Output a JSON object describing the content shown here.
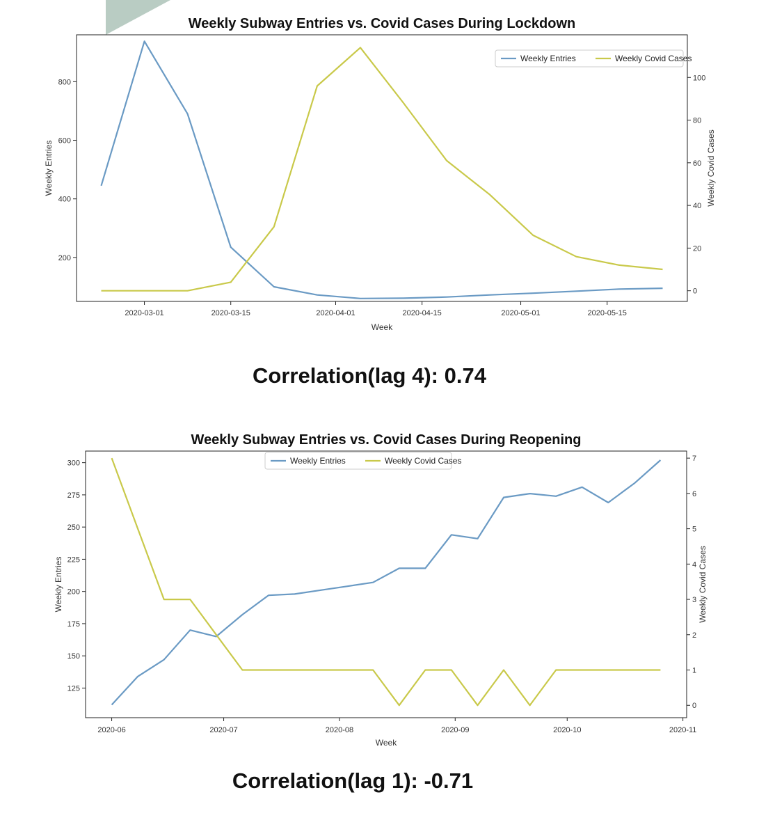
{
  "colors": {
    "entries": "#6a9ac4",
    "covid": "#c9c94a",
    "corner_decor": "#b9ccc3"
  },
  "correlations": {
    "lockdown": "Correlation(lag 4): 0.74",
    "reopening": "Correlation(lag 1): -0.71"
  },
  "chart_data": [
    {
      "type": "line",
      "title": "Weekly Subway Entries vs. Covid Cases During Lockdown",
      "xlabel": "Week",
      "ylabel": "Weekly Entries",
      "y2label": "Weekly Covid Cases",
      "x": [
        "2020-02-23",
        "2020-03-01",
        "2020-03-08",
        "2020-03-15",
        "2020-03-22",
        "2020-03-29",
        "2020-04-05",
        "2020-04-12",
        "2020-04-19",
        "2020-04-26",
        "2020-05-03",
        "2020-05-10",
        "2020-05-17",
        "2020-05-24"
      ],
      "xlim": [
        "2020-02-19",
        "2020-05-28"
      ],
      "xticks": [
        "2020-03-01",
        "2020-03-15",
        "2020-04-01",
        "2020-04-15",
        "2020-05-01",
        "2020-05-15"
      ],
      "ylim": [
        50,
        960
      ],
      "yticks": [
        200,
        400,
        600,
        800
      ],
      "y2lim": [
        -5,
        120
      ],
      "y2ticks": [
        0,
        20,
        40,
        60,
        80,
        100
      ],
      "legend": "top-right",
      "grid": false,
      "series": [
        {
          "name": "Weekly Entries",
          "axis": "left",
          "values": [
            445,
            938,
            690,
            235,
            100,
            72,
            60,
            61,
            65,
            72,
            78,
            85,
            92,
            95
          ]
        },
        {
          "name": "Weekly Covid Cases",
          "axis": "right",
          "values": [
            0,
            0,
            0,
            4,
            30,
            96,
            114,
            88,
            61,
            45,
            26,
            16,
            12,
            10
          ]
        }
      ]
    },
    {
      "type": "line",
      "title": "Weekly Subway Entries vs. Covid Cases During Reopening",
      "xlabel": "Week",
      "ylabel": "Weekly Entries",
      "y2label": "Weekly Covid Cases",
      "x": [
        "2020-06-01",
        "2020-06-08",
        "2020-06-15",
        "2020-06-22",
        "2020-06-29",
        "2020-07-06",
        "2020-07-13",
        "2020-07-20",
        "2020-07-27",
        "2020-08-03",
        "2020-08-10",
        "2020-08-17",
        "2020-08-24",
        "2020-08-31",
        "2020-09-07",
        "2020-09-14",
        "2020-09-21",
        "2020-09-28",
        "2020-10-05",
        "2020-10-12",
        "2020-10-19",
        "2020-10-26"
      ],
      "xlim": [
        "2020-05-25",
        "2020-11-02"
      ],
      "xticks": [
        "2020-06",
        "2020-07",
        "2020-08",
        "2020-09",
        "2020-10",
        "2020-11"
      ],
      "ylim": [
        102,
        309
      ],
      "yticks": [
        125,
        150,
        175,
        200,
        225,
        250,
        275,
        300
      ],
      "y2lim": [
        -0.35,
        7.2
      ],
      "y2ticks": [
        0,
        1,
        2,
        3,
        4,
        5,
        6,
        7
      ],
      "legend": "top-center",
      "grid": false,
      "series": [
        {
          "name": "Weekly Entries",
          "axis": "left",
          "values": [
            112,
            134,
            147,
            170,
            165,
            182,
            197,
            198,
            201,
            204,
            207,
            218,
            218,
            244,
            241,
            273,
            276,
            274,
            281,
            269,
            284,
            302
          ]
        },
        {
          "name": "Weekly Covid Cases",
          "axis": "right",
          "values": [
            7,
            5,
            3,
            3,
            2,
            1,
            1,
            1,
            1,
            1,
            1,
            0,
            1,
            1,
            0,
            1,
            0,
            1,
            1,
            1,
            1,
            1
          ]
        }
      ]
    }
  ]
}
